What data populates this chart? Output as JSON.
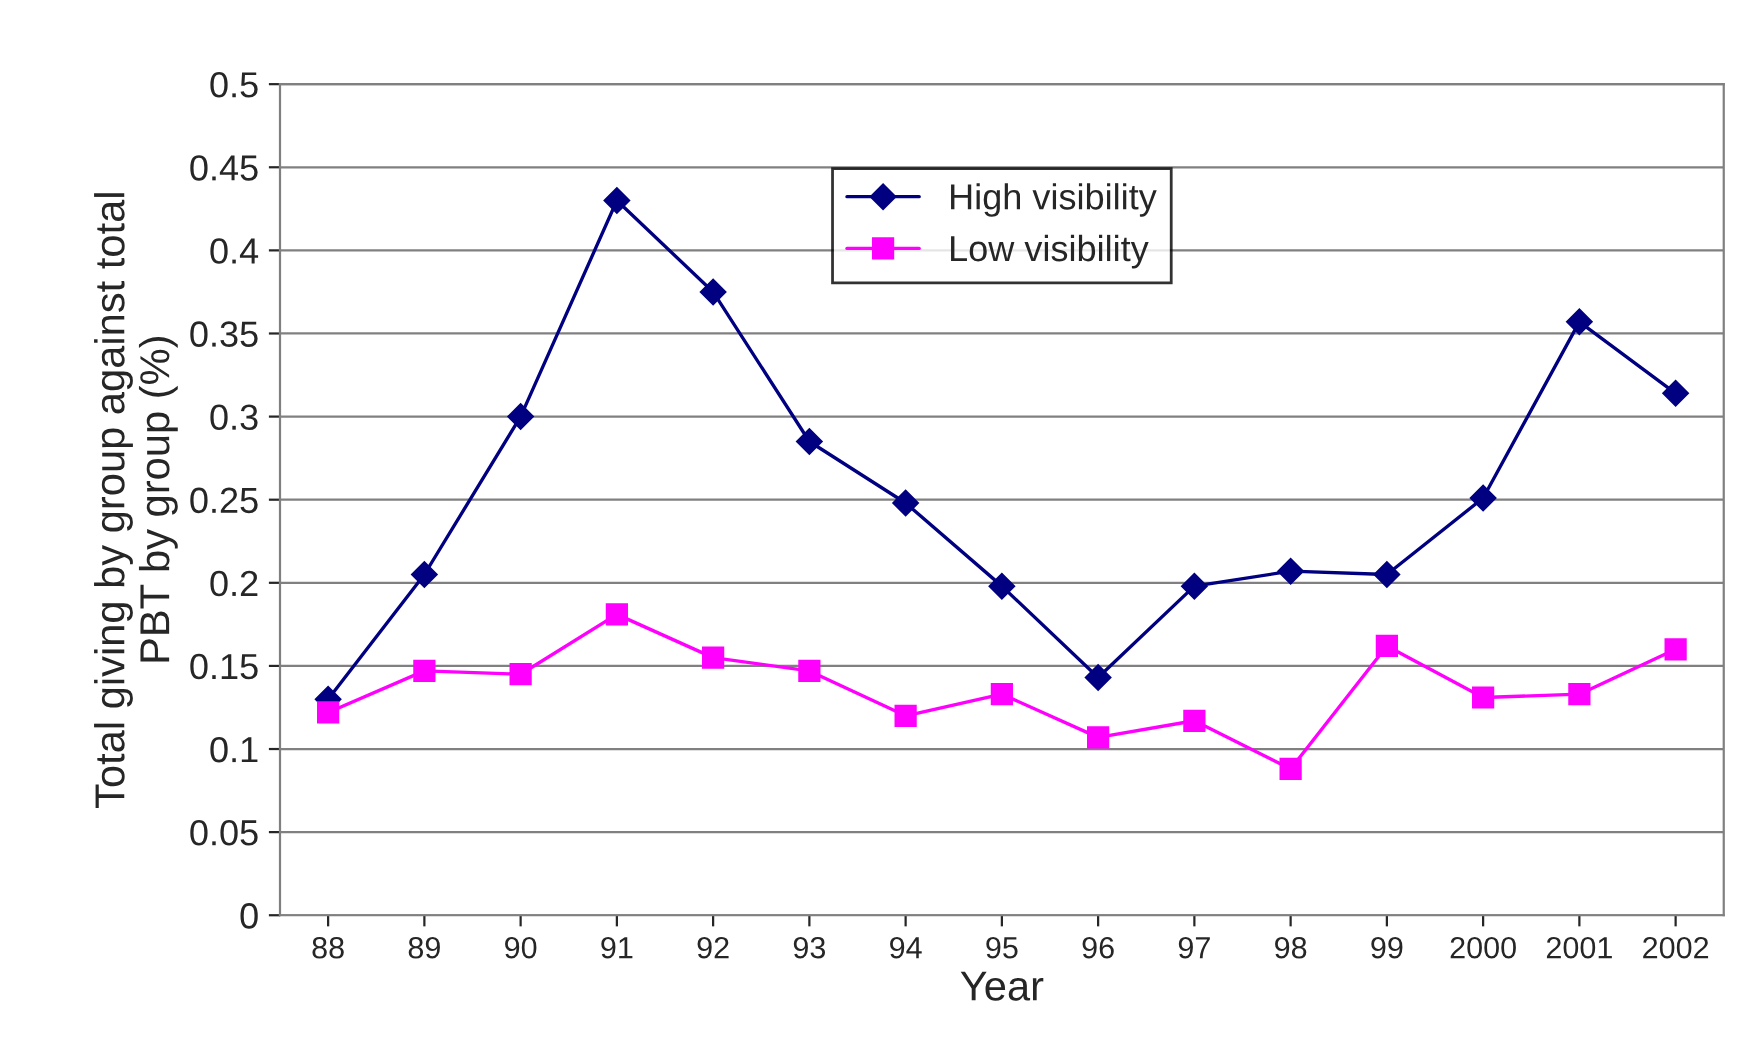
{
  "chart_data": {
    "type": "line",
    "xlabel": "Year",
    "ylabel": "Total giving by group against total\nPBT by group (%)",
    "categories": [
      "88",
      "89",
      "90",
      "91",
      "92",
      "93",
      "94",
      "95",
      "96",
      "97",
      "98",
      "99",
      "2000",
      "2001",
      "2002"
    ],
    "series": [
      {
        "name": "High visibility",
        "color": "#000080",
        "marker": "diamond",
        "values": [
          0.13,
          0.205,
          0.3,
          0.43,
          0.375,
          0.285,
          0.248,
          0.198,
          0.143,
          0.198,
          0.207,
          0.205,
          0.251,
          0.357,
          0.314
        ]
      },
      {
        "name": "Low visibility",
        "color": "#ff00ff",
        "marker": "square",
        "values": [
          0.122,
          0.147,
          0.145,
          0.181,
          0.155,
          0.147,
          0.12,
          0.133,
          0.107,
          0.117,
          0.088,
          0.162,
          0.131,
          0.133,
          0.16
        ]
      }
    ],
    "ylim": [
      0,
      0.5
    ],
    "yticks": [
      0,
      0.05,
      0.1,
      0.15,
      0.2,
      0.25,
      0.3,
      0.35,
      0.4,
      0.45,
      0.5
    ],
    "grid": "y",
    "legend": "top center",
    "line_style": "solid"
  }
}
